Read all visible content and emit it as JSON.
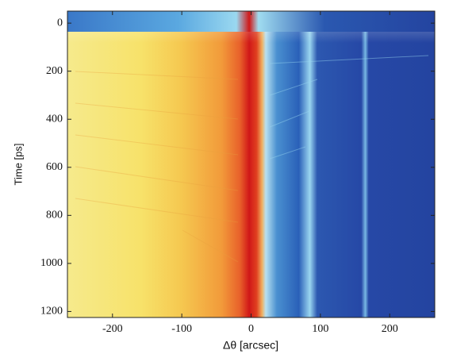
{
  "chart_data": {
    "type": "heatmap",
    "xlabel": "Δθ [arcsec]",
    "ylabel": "Time [ps]",
    "xlim": [
      -265,
      265
    ],
    "ylim": [
      -50,
      1225
    ],
    "y_inverted": true,
    "xticks": [
      -200,
      -100,
      0,
      100,
      200
    ],
    "yticks": [
      0,
      200,
      400,
      600,
      800,
      1000,
      1200
    ]
  }
}
